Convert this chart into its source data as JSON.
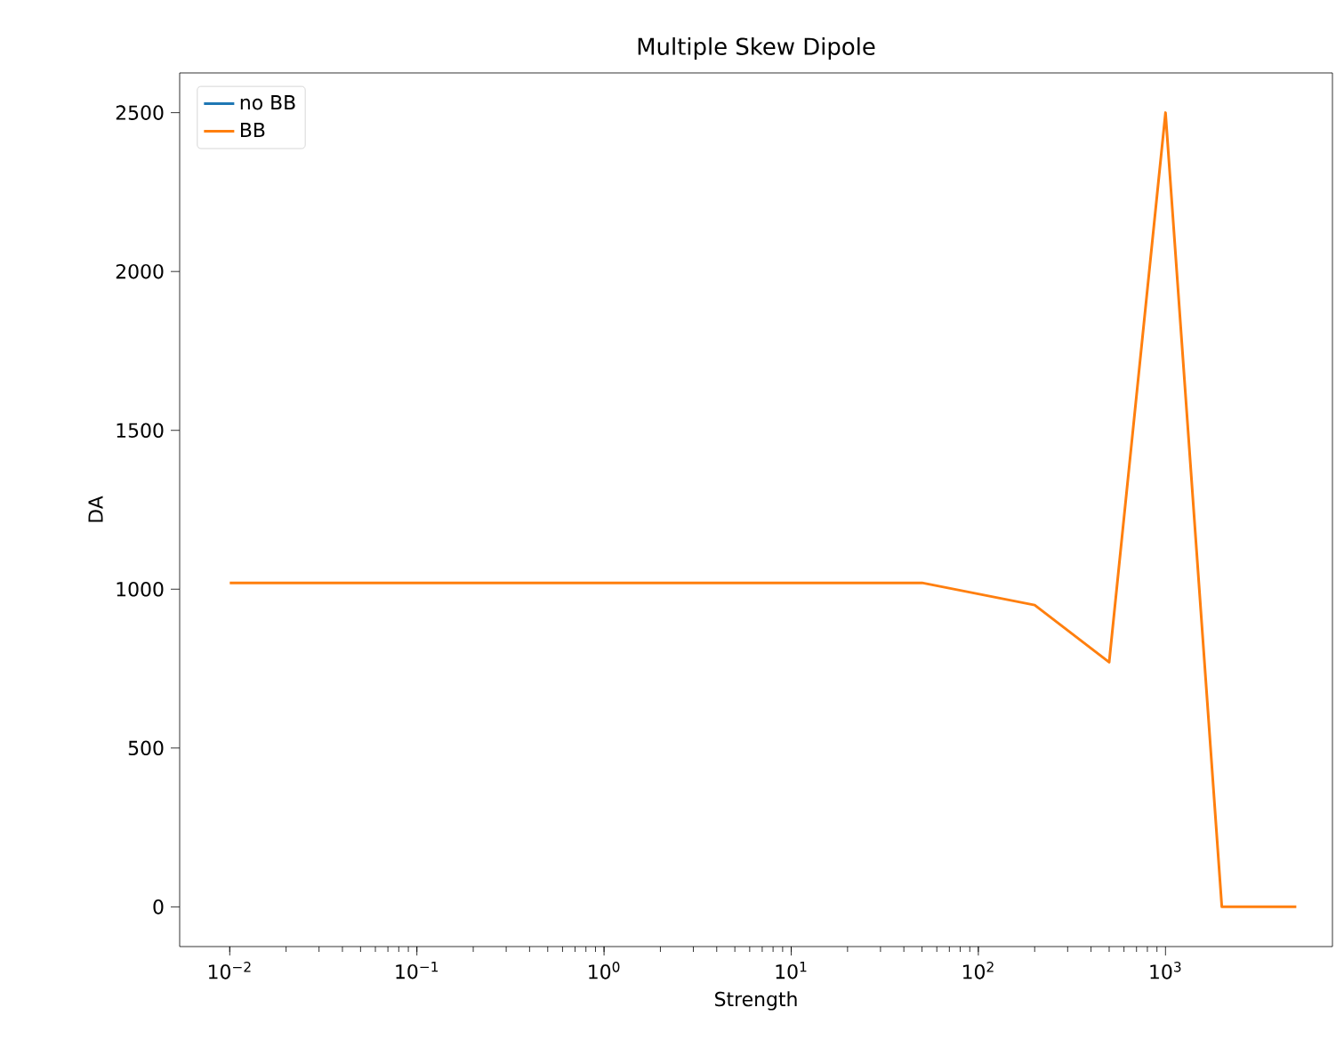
{
  "chart_data": {
    "type": "line",
    "title": "Multiple Skew Dipole",
    "xlabel": "Strength",
    "ylabel": "DA",
    "x": [
      0.01,
      50,
      200,
      500,
      1000,
      2000,
      5000
    ],
    "series": [
      {
        "name": "no BB",
        "color": "#1f77b4",
        "values": [
          null,
          null,
          null,
          null,
          null,
          null,
          null
        ]
      },
      {
        "name": "BB",
        "color": "#ff7f0e",
        "values": [
          1020,
          1020,
          950,
          770,
          2500,
          0,
          0
        ]
      }
    ],
    "log": "x",
    "xlim": [
      0.0054,
      7800
    ],
    "ylim": [
      -125,
      2625
    ],
    "xticks": [
      {
        "value": 0.01,
        "label": "10$^{−2}$"
      },
      {
        "value": 0.1,
        "label": "10$^{−1}$"
      },
      {
        "value": 1,
        "label": "10$^{0}$"
      },
      {
        "value": 10,
        "label": "10$^{1}$"
      },
      {
        "value": 100,
        "label": "10$^{2}$"
      },
      {
        "value": 1000,
        "label": "10$^{3}$"
      }
    ],
    "yticks": [
      0,
      500,
      1000,
      1500,
      2000,
      2500
    ],
    "legend": "top left",
    "grid": false,
    "line_style": "solid",
    "marker": "none"
  }
}
